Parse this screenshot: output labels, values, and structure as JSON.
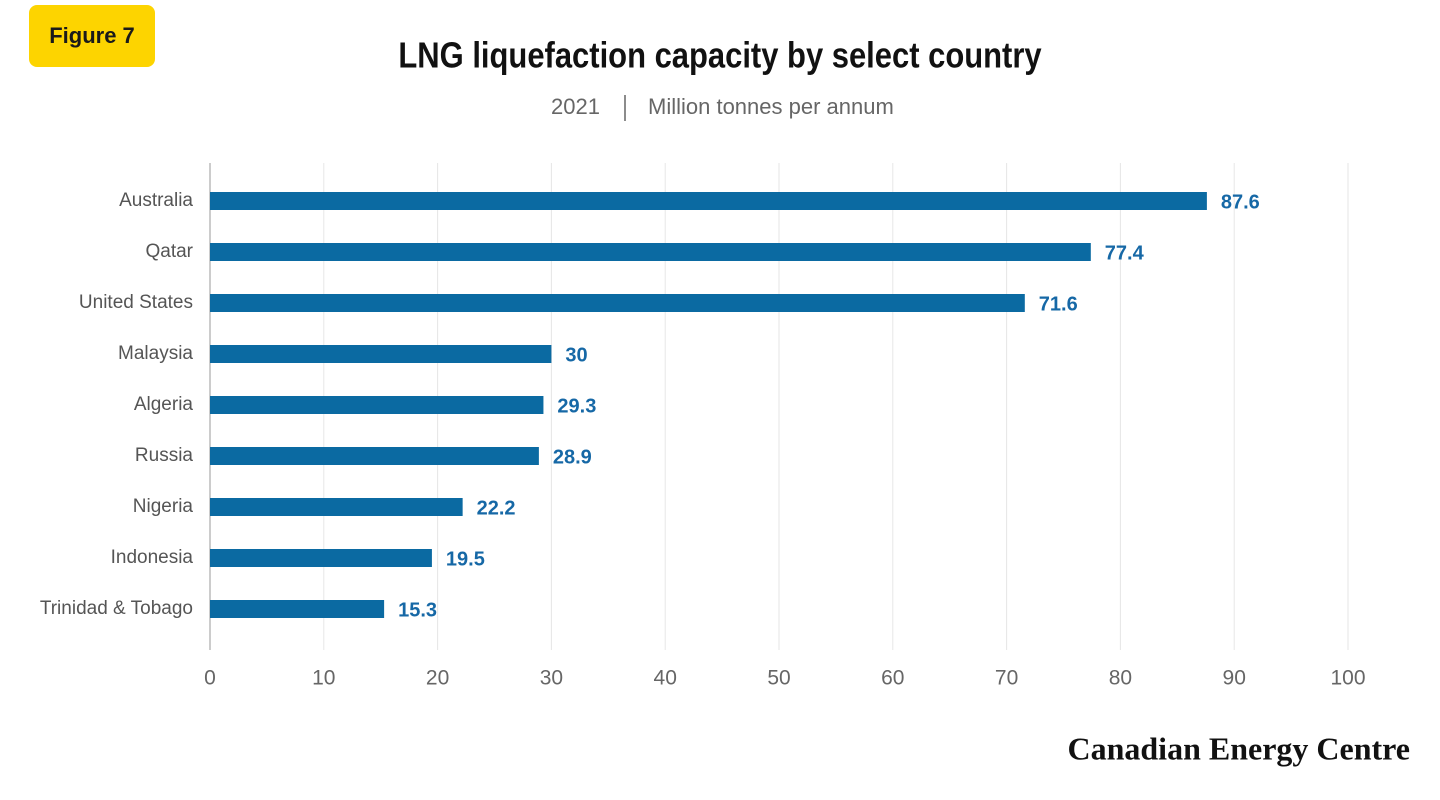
{
  "figure_label": "Figure 7",
  "brand": "Canadian Energy Centre",
  "chart_data": {
    "type": "bar",
    "orientation": "horizontal",
    "title": "LNG liquefaction capacity by select country",
    "subtitle": [
      "2021",
      "Million tonnes per annum"
    ],
    "categories": [
      "Australia",
      "Qatar",
      "United States",
      "Malaysia",
      "Algeria",
      "Russia",
      "Nigeria",
      "Indonesia",
      "Trinidad & Tobago"
    ],
    "values": [
      87.6,
      77.4,
      71.6,
      30,
      29.3,
      28.9,
      22.2,
      19.5,
      15.3
    ],
    "color": "#0b6aa2",
    "label_color": "#1668a6",
    "xlim": [
      0,
      100
    ],
    "xticks": [
      0,
      10,
      20,
      30,
      40,
      50,
      60,
      70,
      80,
      90,
      100
    ],
    "grid": true
  }
}
